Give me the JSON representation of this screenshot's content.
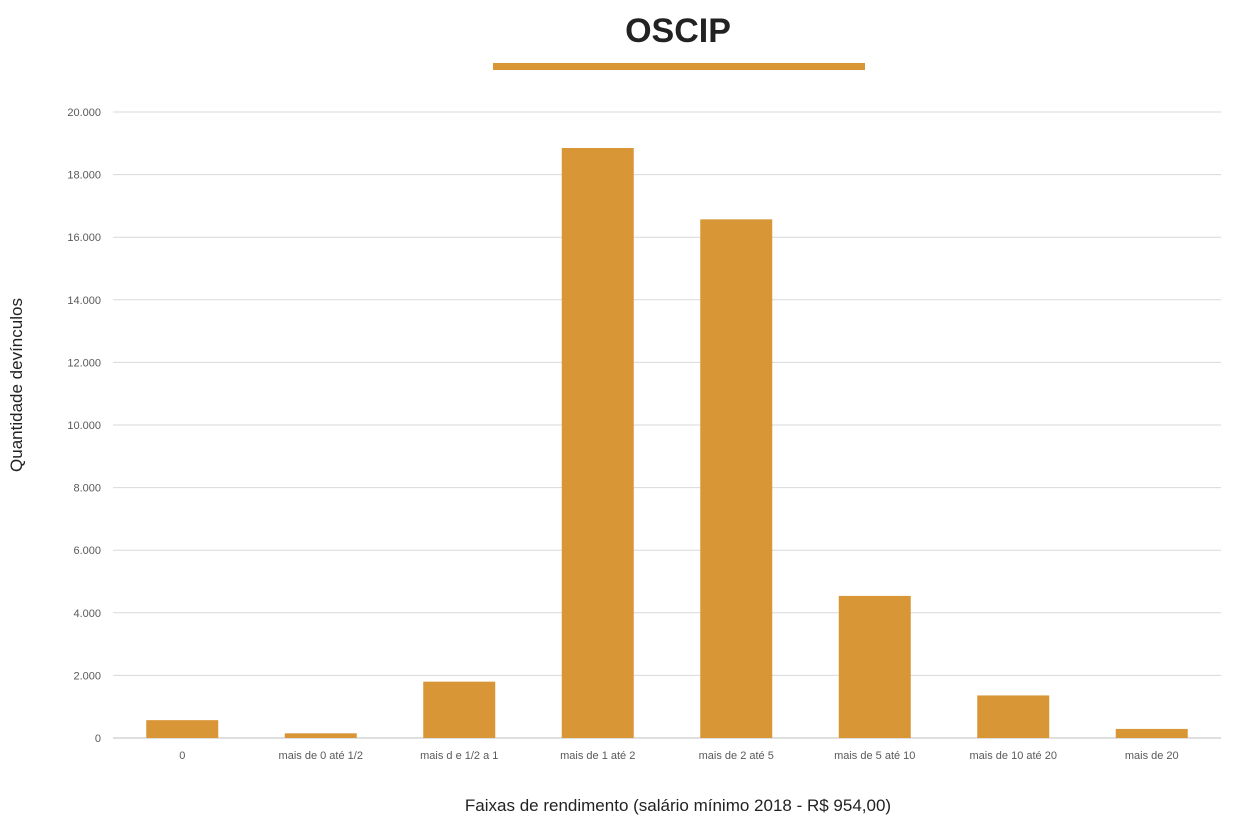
{
  "chart_data": {
    "type": "bar",
    "title": "OSCIP",
    "xlabel": "Faixas de rendimento (salário mínimo 2018 - R$ 954,00)",
    "ylabel": "Quantidade devínculos",
    "categories": [
      "0",
      "mais de 0 até 1/2",
      "mais d e 1/2 a 1",
      "mais de 1 até 2",
      "mais de 2 até 5",
      "mais de 5 até 10",
      "mais de 10 até 20",
      "mais de 20"
    ],
    "values": [
      570,
      150,
      1800,
      18850,
      16570,
      4540,
      1360,
      290
    ],
    "ylim": [
      0,
      20000
    ],
    "yticks": [
      {
        "value": 0,
        "label": "0"
      },
      {
        "value": 2000,
        "label": "2.000"
      },
      {
        "value": 4000,
        "label": "4.000"
      },
      {
        "value": 6000,
        "label": "6.000"
      },
      {
        "value": 8000,
        "label": "8.000"
      },
      {
        "value": 10000,
        "label": "10.000"
      },
      {
        "value": 12000,
        "label": "12.000"
      },
      {
        "value": 14000,
        "label": "14.000"
      },
      {
        "value": 16000,
        "label": "16.000"
      },
      {
        "value": 18000,
        "label": "18.000"
      },
      {
        "value": 20000,
        "label": "20.000"
      }
    ],
    "grid": true,
    "legend": "none",
    "bar_color": "#d99636",
    "title_underline_color": "#d99636"
  }
}
